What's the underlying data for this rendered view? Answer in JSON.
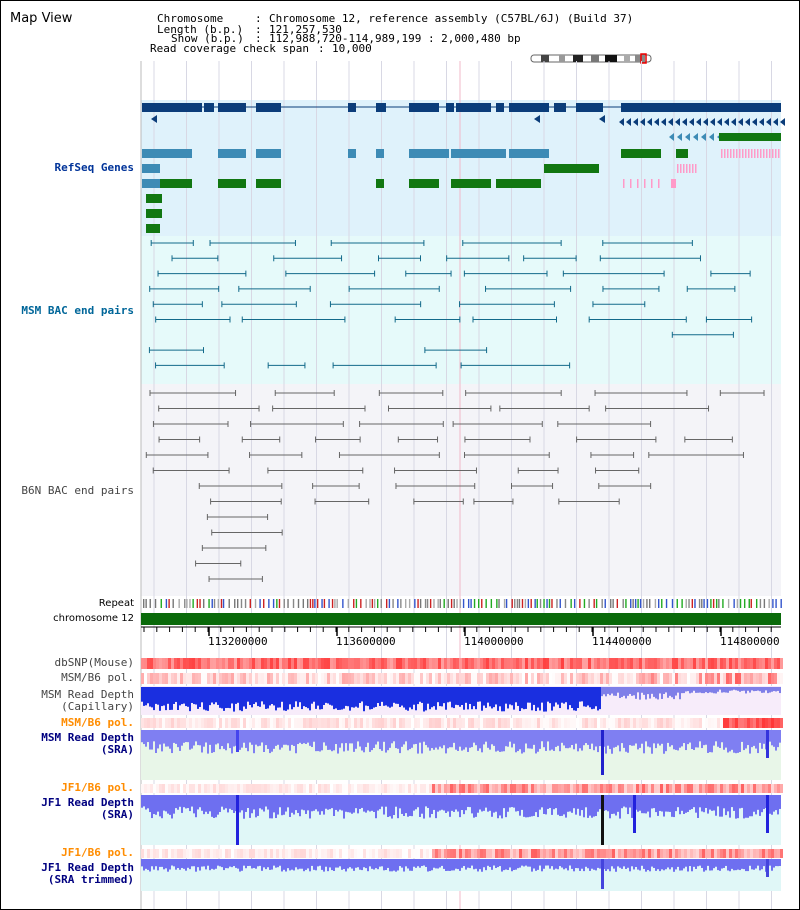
{
  "map_title": "Map View",
  "info": {
    "chromosome_label": "Chromosome",
    "chromosome_value": "Chromosome 12, reference assembly (C57BL/6J) (Build 37)",
    "length_label": "Length (b.p.)",
    "length_value": "121,257,530",
    "show_label": "Show (b.p.)",
    "show_value": "112,988,720-114,989,199 : 2,000,480 bp",
    "coverage_label": "Read coverage check span",
    "coverage_value": "10,000"
  },
  "track_labels": {
    "refseq": "RefSeq Genes",
    "msm_bac": "MSM BAC end pairs",
    "b6n_bac": "B6N BAC end pairs",
    "repeat": "Repeat",
    "chromosome": "chromosome 12",
    "dbsnp": "dbSNP(Mouse)",
    "msm_b6_pol_1": "MSM/B6 pol.",
    "msm_depth_cap": "MSM Read Depth\n(Capillary)",
    "msm_b6_pol_2": "MSM/B6 pol.",
    "msm_depth_sra": "MSM Read Depth\n(SRA)",
    "jf1_b6_pol_1": "JF1/B6 pol.",
    "jf1_depth_sra": "JF1 Read Depth\n(SRA)",
    "jf1_b6_pol_2": "JF1/B6 pol.",
    "jf1_depth_trim": "JF1 Read Depth\n(SRA trimmed)"
  },
  "axis_ticks": [
    "113200000",
    "113600000",
    "114000000",
    "114400000",
    "114800000"
  ],
  "colors": {
    "refseq_bg": "#dff2fb",
    "msm_bg": "#e6fafa",
    "b6n_bg": "#f4f4f8",
    "refseq_dark": "#0b3d7a",
    "refseq_mid": "#3d8bb5",
    "refseq_green": "#117711",
    "msm_line": "#136a8a",
    "b6n_line": "#666666",
    "chrom_bar": "#0a6a0a",
    "label_blue": "#003399",
    "label_navy": "#000080",
    "label_orange": "#ff8c00",
    "label_teal": "#006699",
    "depth_blue": "#2222ee"
  }
}
